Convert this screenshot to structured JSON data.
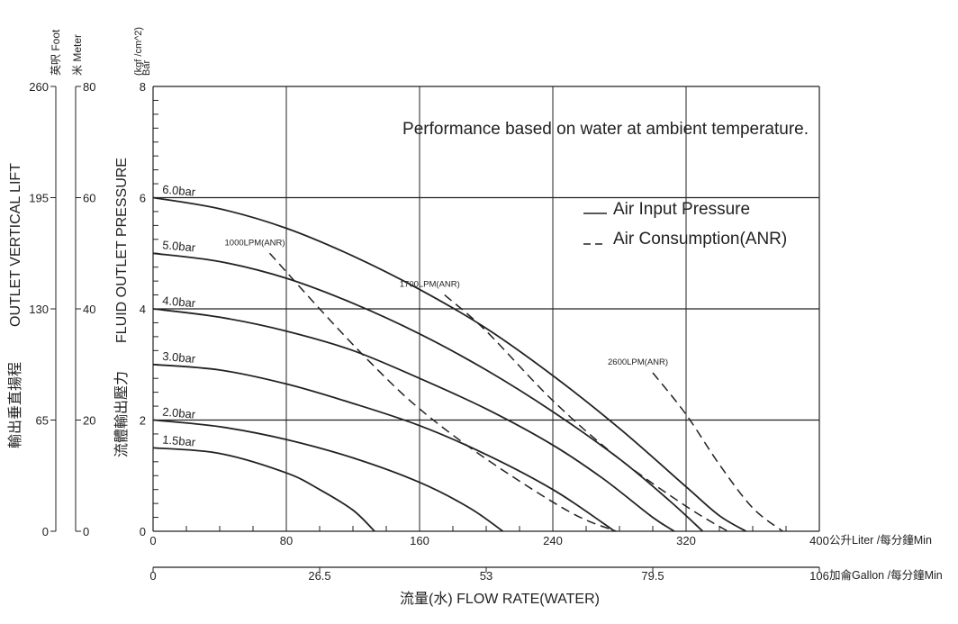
{
  "chart_data": {
    "type": "line",
    "note": "Performance based on water at ambient temperature.",
    "legend": [
      {
        "style": "solid",
        "label": "Air Input Pressure"
      },
      {
        "style": "dashed",
        "label": "Air Consumption(ANR)"
      }
    ],
    "y_axis": {
      "units_label": "Bar",
      "units_label2": "(kgf /cm^2)",
      "title_en": "FLUID OUTLET PRESSURE",
      "title_cn": "流體輸出壓力",
      "ticks": [
        "0",
        "2",
        "4",
        "6",
        "8"
      ],
      "ylim": [
        0,
        8
      ]
    },
    "meter_axis": {
      "unit_label": "米 Meter",
      "ticks": [
        "0",
        "20",
        "40",
        "60",
        "80"
      ]
    },
    "foot_axis": {
      "unit_label": "英呎 Foot",
      "ticks": [
        "0",
        "65",
        "130",
        "195",
        "260"
      ]
    },
    "lift_title_en": "OUTLET VERTICAL LIFT",
    "lift_title_cn": "輸出垂直揚程",
    "x_axis": {
      "ticks": [
        "0",
        "80",
        "160",
        "240",
        "320",
        "400"
      ],
      "xlim": [
        0,
        400
      ],
      "unit_label": "公升Liter /每分鐘Min"
    },
    "x_axis2": {
      "ticks": [
        "0",
        "26.5",
        "53",
        "79.5",
        "106"
      ],
      "unit_label": "加侖Gallon /每分鐘Min"
    },
    "x_title": "流量(水) FLOW RATE(WATER)",
    "series": [
      {
        "name": "6.0bar",
        "points": [
          [
            0,
            6.0
          ],
          [
            40,
            5.8
          ],
          [
            80,
            5.45
          ],
          [
            120,
            4.95
          ],
          [
            160,
            4.35
          ],
          [
            200,
            3.65
          ],
          [
            240,
            2.8
          ],
          [
            280,
            1.85
          ],
          [
            320,
            0.8
          ],
          [
            340,
            0.28
          ],
          [
            356,
            0
          ]
        ]
      },
      {
        "name": "5.0bar",
        "points": [
          [
            0,
            5.0
          ],
          [
            40,
            4.85
          ],
          [
            80,
            4.55
          ],
          [
            120,
            4.1
          ],
          [
            160,
            3.55
          ],
          [
            200,
            2.9
          ],
          [
            240,
            2.15
          ],
          [
            280,
            1.3
          ],
          [
            310,
            0.55
          ],
          [
            330,
            0
          ]
        ]
      },
      {
        "name": "4.0bar",
        "points": [
          [
            0,
            4.0
          ],
          [
            40,
            3.85
          ],
          [
            80,
            3.6
          ],
          [
            120,
            3.25
          ],
          [
            160,
            2.75
          ],
          [
            200,
            2.2
          ],
          [
            240,
            1.55
          ],
          [
            270,
            0.95
          ],
          [
            300,
            0.25
          ],
          [
            313,
            0
          ]
        ]
      },
      {
        "name": "3.0bar",
        "points": [
          [
            0,
            3.0
          ],
          [
            40,
            2.9
          ],
          [
            80,
            2.65
          ],
          [
            120,
            2.3
          ],
          [
            160,
            1.9
          ],
          [
            200,
            1.38
          ],
          [
            240,
            0.75
          ],
          [
            270,
            0.15
          ],
          [
            277,
            0
          ]
        ]
      },
      {
        "name": "2.0bar",
        "points": [
          [
            0,
            2.0
          ],
          [
            40,
            1.88
          ],
          [
            80,
            1.65
          ],
          [
            120,
            1.32
          ],
          [
            160,
            0.88
          ],
          [
            190,
            0.42
          ],
          [
            210,
            0
          ]
        ]
      },
      {
        "name": "1.5bar",
        "points": [
          [
            0,
            1.5
          ],
          [
            40,
            1.4
          ],
          [
            80,
            1.05
          ],
          [
            100,
            0.75
          ],
          [
            120,
            0.38
          ],
          [
            133,
            0
          ]
        ]
      }
    ],
    "air_consumption": [
      {
        "name": "1000LPM(ANR)",
        "points": [
          [
            70,
            5.0
          ],
          [
            100,
            4.0
          ],
          [
            130,
            3.05
          ],
          [
            160,
            2.2
          ],
          [
            200,
            1.3
          ],
          [
            250,
            0.35
          ],
          [
            278,
            0
          ]
        ]
      },
      {
        "name": "1700LPM(ANR)",
        "points": [
          [
            175,
            4.25
          ],
          [
            200,
            3.6
          ],
          [
            240,
            2.35
          ],
          [
            280,
            1.3
          ],
          [
            320,
            0.45
          ],
          [
            345,
            0
          ]
        ]
      },
      {
        "name": "2600LPM(ANR)",
        "points": [
          [
            300,
            2.85
          ],
          [
            320,
            2.1
          ],
          [
            340,
            1.2
          ],
          [
            360,
            0.42
          ],
          [
            378,
            0
          ]
        ]
      }
    ]
  }
}
